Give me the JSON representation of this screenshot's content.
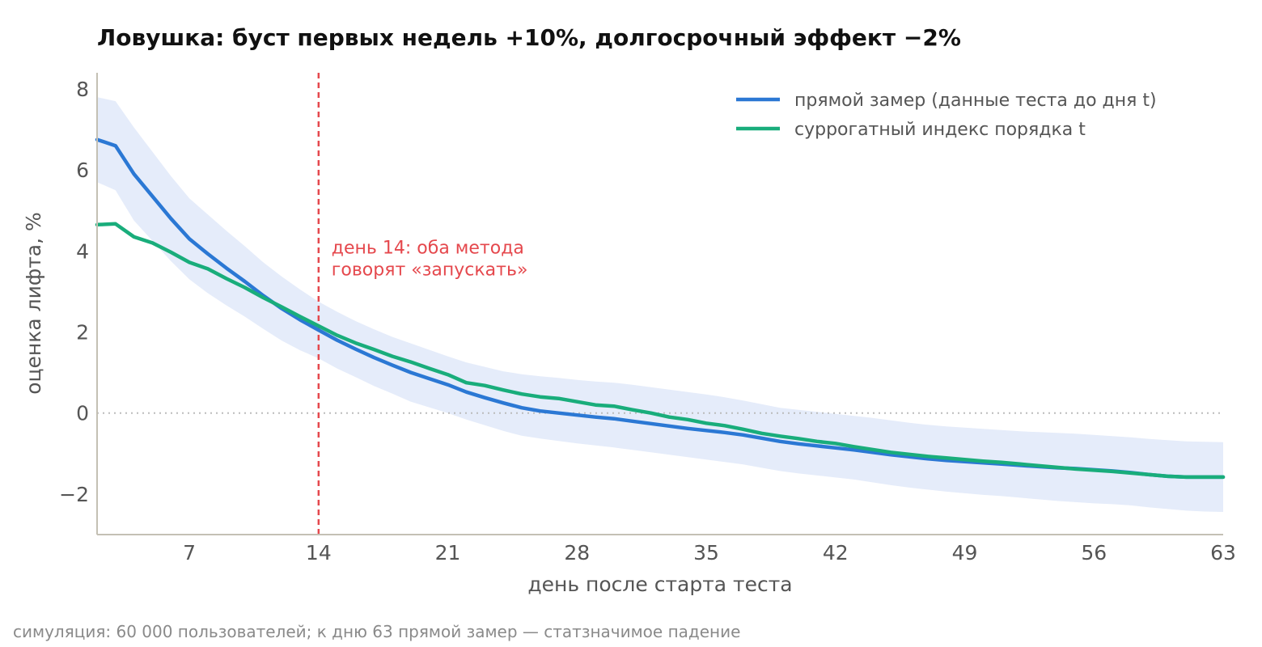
{
  "chart_data": {
    "type": "line",
    "title": "Ловушка: буст первых недель +10%, долгосрочный эффект −2%",
    "xlabel": "день после старта теста",
    "ylabel": "оценка лифта, %",
    "xlim": [
      2,
      63
    ],
    "ylim": [
      -3,
      8.4
    ],
    "x_ticks": [
      7,
      14,
      21,
      28,
      35,
      42,
      49,
      56,
      63
    ],
    "x_tick_labels": [
      "7",
      "14",
      "21",
      "28",
      "35",
      "42",
      "49",
      "56",
      "63"
    ],
    "y_ticks": [
      -2,
      0,
      2,
      4,
      6,
      8
    ],
    "y_tick_labels": [
      "−2",
      "0",
      "2",
      "4",
      "6",
      "8"
    ],
    "grid": false,
    "legend_position": "top-right",
    "x": [
      2,
      3,
      4,
      5,
      6,
      7,
      8,
      9,
      10,
      11,
      12,
      13,
      14,
      15,
      16,
      17,
      18,
      19,
      20,
      21,
      22,
      23,
      24,
      25,
      26,
      27,
      28,
      29,
      30,
      31,
      32,
      33,
      34,
      35,
      36,
      37,
      38,
      39,
      40,
      41,
      42,
      43,
      44,
      45,
      46,
      47,
      48,
      49,
      50,
      51,
      52,
      53,
      54,
      55,
      56,
      57,
      58,
      59,
      60,
      61,
      62,
      63
    ],
    "series": [
      {
        "name": "прямой замер (данные теста до дня t)",
        "color": "#2b78d4",
        "values": [
          6.75,
          6.6,
          5.9,
          5.35,
          4.8,
          4.3,
          3.93,
          3.58,
          3.25,
          2.9,
          2.58,
          2.3,
          2.05,
          1.8,
          1.58,
          1.37,
          1.18,
          1.0,
          0.85,
          0.7,
          0.52,
          0.38,
          0.25,
          0.13,
          0.05,
          0.0,
          -0.05,
          -0.1,
          -0.14,
          -0.2,
          -0.26,
          -0.32,
          -0.38,
          -0.43,
          -0.48,
          -0.54,
          -0.62,
          -0.7,
          -0.76,
          -0.81,
          -0.86,
          -0.91,
          -0.97,
          -1.03,
          -1.08,
          -1.13,
          -1.17,
          -1.2,
          -1.23,
          -1.26,
          -1.29,
          -1.32,
          -1.35,
          -1.37,
          -1.4,
          -1.43,
          -1.47,
          -1.52,
          -1.56,
          -1.58,
          -1.58,
          -1.58
        ]
      },
      {
        "name": "суррогатный индекс порядка t",
        "color": "#19ad7b",
        "values": [
          4.65,
          4.67,
          4.35,
          4.2,
          3.97,
          3.72,
          3.56,
          3.32,
          3.1,
          2.85,
          2.62,
          2.38,
          2.15,
          1.92,
          1.73,
          1.57,
          1.4,
          1.26,
          1.1,
          0.95,
          0.75,
          0.68,
          0.57,
          0.47,
          0.4,
          0.36,
          0.28,
          0.2,
          0.17,
          0.08,
          0.0,
          -0.1,
          -0.16,
          -0.25,
          -0.31,
          -0.4,
          -0.5,
          -0.57,
          -0.63,
          -0.7,
          -0.75,
          -0.83,
          -0.9,
          -0.97,
          -1.02,
          -1.07,
          -1.11,
          -1.15,
          -1.19,
          -1.22,
          -1.26,
          -1.3,
          -1.34,
          -1.38,
          -1.41,
          -1.44,
          -1.48,
          -1.52,
          -1.56,
          -1.58,
          -1.58,
          -1.58
        ]
      }
    ],
    "confidence_band": {
      "series": "прямой замер (данные теста до дня t)",
      "color": "#e5ecfa",
      "upper": [
        7.8,
        7.7,
        7.05,
        6.45,
        5.85,
        5.3,
        4.9,
        4.5,
        4.12,
        3.72,
        3.37,
        3.05,
        2.75,
        2.5,
        2.27,
        2.07,
        1.88,
        1.72,
        1.56,
        1.4,
        1.25,
        1.14,
        1.03,
        0.96,
        0.91,
        0.87,
        0.82,
        0.78,
        0.75,
        0.7,
        0.64,
        0.58,
        0.52,
        0.46,
        0.39,
        0.31,
        0.22,
        0.13,
        0.08,
        0.03,
        -0.02,
        -0.07,
        -0.12,
        -0.18,
        -0.24,
        -0.29,
        -0.33,
        -0.36,
        -0.39,
        -0.42,
        -0.45,
        -0.47,
        -0.49,
        -0.51,
        -0.54,
        -0.57,
        -0.6,
        -0.64,
        -0.67,
        -0.7,
        -0.71,
        -0.72
      ],
      "lower": [
        5.7,
        5.5,
        4.75,
        4.25,
        3.75,
        3.3,
        2.96,
        2.66,
        2.38,
        2.08,
        1.79,
        1.55,
        1.35,
        1.1,
        0.89,
        0.67,
        0.48,
        0.28,
        0.14,
        0.0,
        -0.16,
        -0.3,
        -0.44,
        -0.56,
        -0.63,
        -0.69,
        -0.75,
        -0.8,
        -0.85,
        -0.91,
        -0.97,
        -1.03,
        -1.09,
        -1.15,
        -1.21,
        -1.27,
        -1.35,
        -1.43,
        -1.49,
        -1.54,
        -1.59,
        -1.64,
        -1.71,
        -1.78,
        -1.84,
        -1.89,
        -1.94,
        -1.98,
        -2.02,
        -2.05,
        -2.09,
        -2.13,
        -2.17,
        -2.2,
        -2.23,
        -2.25,
        -2.28,
        -2.33,
        -2.37,
        -2.41,
        -2.43,
        -2.44
      ]
    },
    "reference_lines": [
      {
        "axis": "y",
        "value": 0,
        "style": "dotted",
        "color": "#bbbbbb"
      },
      {
        "axis": "x",
        "value": 14,
        "style": "dashed",
        "color": "#e5484d"
      }
    ],
    "annotation": {
      "x": 14.7,
      "y": 4.1,
      "lines": [
        "день 14: оба метода",
        "говорят «запускать»"
      ],
      "color": "#e5484d"
    },
    "footnote": "симуляция: 60 000 пользователей; к дню 63 прямой замер — статзначимое падение"
  }
}
